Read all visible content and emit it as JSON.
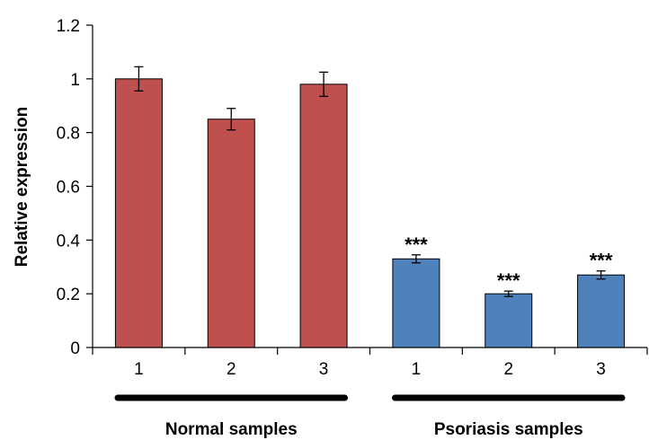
{
  "chart_data": {
    "type": "bar",
    "title": "",
    "xlabel": "",
    "ylabel": "Relative expression",
    "ylim": [
      0,
      1.2
    ],
    "yticks": [
      "0",
      "0.2",
      "0.4",
      "0.6",
      "0.8",
      "1",
      "1.2"
    ],
    "grid": false,
    "categories": [
      "1",
      "2",
      "3",
      "1",
      "2",
      "3"
    ],
    "values": [
      1.0,
      0.85,
      0.98,
      0.33,
      0.2,
      0.27
    ],
    "errors": [
      0.045,
      0.04,
      0.045,
      0.015,
      0.01,
      0.015
    ],
    "annotations": [
      "",
      "",
      "",
      "***",
      "***",
      "***"
    ],
    "groups": [
      {
        "label": "Normal samples",
        "start": 0,
        "end": 2,
        "color": "#C0504D"
      },
      {
        "label": "Psoriasis samples",
        "start": 3,
        "end": 5,
        "color": "#4F81BD"
      }
    ]
  }
}
